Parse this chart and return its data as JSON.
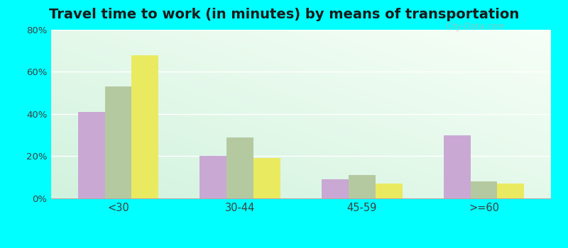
{
  "title": "Travel time to work (in minutes) by means of transportation",
  "categories": [
    "<30",
    "30-44",
    "45-59",
    ">=60"
  ],
  "series": {
    "Public transportation - Alabama": [
      41,
      20,
      9,
      30
    ],
    "Other means - Lexington": [
      53,
      29,
      11,
      8
    ],
    "Other means - Alabama": [
      68,
      19,
      7,
      7
    ]
  },
  "colors": {
    "Public transportation - Alabama": "#c9a8d4",
    "Other means - Lexington": "#b5c9a0",
    "Other means - Alabama": "#eaea60"
  },
  "legend_colors": {
    "Public transportation - Alabama": "#d4a8c9",
    "Other means - Lexington": "#ccd9b8",
    "Other means - Alabama": "#e8e060"
  },
  "ylim": [
    0,
    80
  ],
  "yticks": [
    0,
    20,
    40,
    60,
    80
  ],
  "ytick_labels": [
    "0%",
    "20%",
    "40%",
    "60%",
    "80%"
  ],
  "outer_background": "#00ffff",
  "title_fontsize": 14,
  "bar_width": 0.22,
  "watermark_text": "City-Data.com"
}
